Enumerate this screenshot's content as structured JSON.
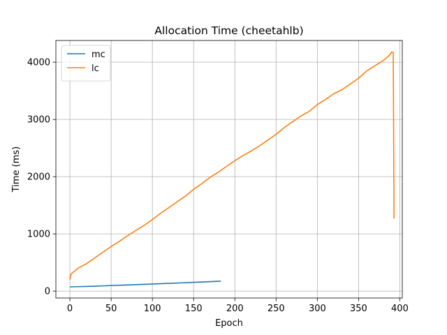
{
  "chart_data": {
    "type": "line",
    "title": "Allocation Time (cheetahlb)",
    "xlabel": "Epoch",
    "ylabel": "Time (ms)",
    "xlim": [
      -17,
      403
    ],
    "ylim": [
      -120,
      4380
    ],
    "xticks": [
      0,
      50,
      100,
      150,
      200,
      250,
      300,
      350,
      400
    ],
    "yticks": [
      0,
      1000,
      2000,
      3000,
      4000
    ],
    "grid": true,
    "legend_position": "top-left",
    "series": [
      {
        "name": "mc",
        "color": "#1f77b4",
        "x": [
          0,
          10,
          20,
          30,
          40,
          50,
          60,
          70,
          80,
          90,
          100,
          110,
          120,
          130,
          140,
          150,
          160,
          170,
          183
        ],
        "y": [
          75,
          78,
          82,
          86,
          92,
          98,
          103,
          108,
          114,
          119,
          125,
          131,
          137,
          142,
          148,
          154,
          160,
          166,
          175
        ]
      },
      {
        "name": "lc",
        "color": "#ff7f0e",
        "x": [
          0,
          1,
          3,
          10,
          20,
          30,
          40,
          50,
          60,
          70,
          80,
          90,
          100,
          110,
          120,
          130,
          140,
          150,
          160,
          170,
          180,
          190,
          200,
          210,
          220,
          230,
          240,
          250,
          260,
          270,
          280,
          290,
          300,
          310,
          320,
          330,
          340,
          350,
          360,
          370,
          380,
          388,
          390,
          392,
          393
        ],
        "y": [
          200,
          290,
          320,
          400,
          480,
          580,
          680,
          780,
          870,
          970,
          1060,
          1150,
          1250,
          1360,
          1460,
          1560,
          1660,
          1780,
          1880,
          1990,
          2080,
          2180,
          2280,
          2370,
          2450,
          2540,
          2640,
          2740,
          2860,
          2960,
          3060,
          3140,
          3260,
          3350,
          3450,
          3520,
          3620,
          3720,
          3850,
          3940,
          4030,
          4130,
          4180,
          4170,
          1270
        ]
      }
    ]
  }
}
